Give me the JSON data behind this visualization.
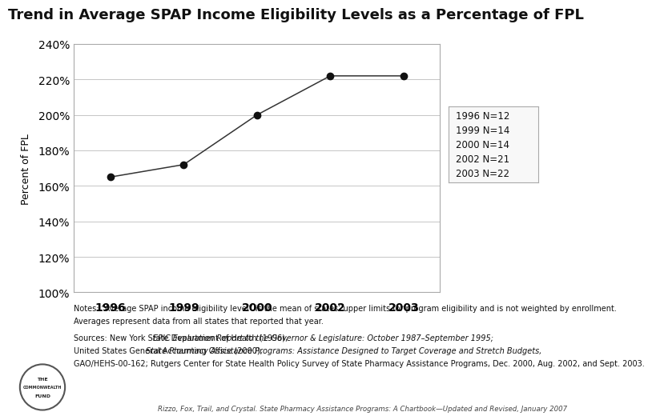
{
  "title": "Trend in Average SPAP Income Eligibility Levels as a Percentage of FPL",
  "years": [
    1996,
    1999,
    2000,
    2002,
    2003
  ],
  "year_labels": [
    "1996",
    "1999",
    "2000",
    "2002",
    "2003"
  ],
  "values": [
    165,
    172,
    200,
    222,
    222
  ],
  "ylabel": "Percent of FPL",
  "ylim": [
    100,
    240
  ],
  "yticks": [
    100,
    120,
    140,
    160,
    180,
    200,
    220,
    240
  ],
  "line_color": "#333333",
  "marker_color": "#111111",
  "marker_size": 6,
  "legend_lines": [
    "1996 N=12",
    "1999 N=14",
    "2000 N=14",
    "2002 N=21",
    "2003 N=22"
  ],
  "note_line1": "Notes: “Average SPAP income eligibility level” is the mean of states’ upper limits for program eligibility and is not weighted by enrollment.",
  "note_line2": "Averages represent data from all states that reported that year.",
  "source_line1": "Sources: New York State Department of Health (1996), ",
  "source_line1_italic": "EPIC Evaluation Report to the Governor & Legislature: October 1987–September 1995;",
  "source_line2_normal": "United States General Accounting Office (2000), ",
  "source_line2_italic": "State Pharmacy Assistance Programs: Assistance Designed to Target Coverage and Stretch Budgets,",
  "source_line3": "GAO/HEHS-00-162; Rutgers Center for State Health Policy Survey of State Pharmacy Assistance Programs, Dec. 2000, Aug. 2002, and Sept. 2003.",
  "citation": "Rizzo, Fox, Trail, and Crystal. State Pharmacy Assistance Programs: A Chartbook—Updated and Revised, January 2007",
  "background_color": "#ffffff",
  "plot_bg_color": "#ffffff",
  "grid_color": "#bbbbbb",
  "title_fontsize": 13,
  "axis_label_fontsize": 9,
  "tick_fontsize": 10,
  "note_fontsize": 7.0,
  "legend_fontsize": 8.5
}
